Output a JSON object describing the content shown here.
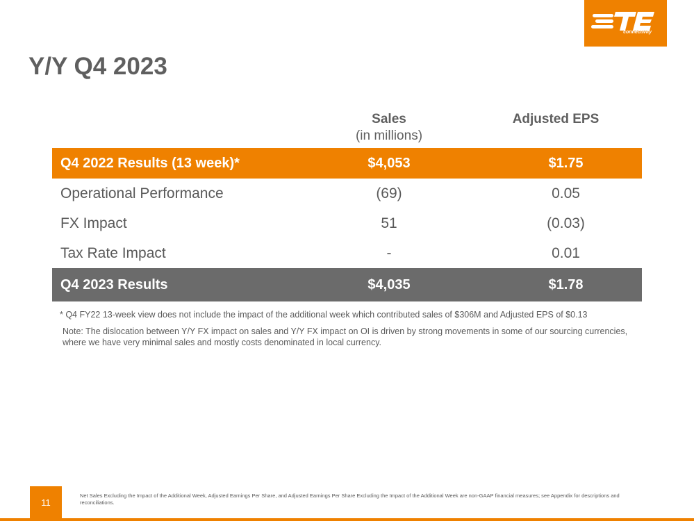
{
  "brand": {
    "logo_text": "TE",
    "logo_subtext": "connectivity",
    "accent_color": "#ef8100",
    "total_row_color": "#6b6b6b",
    "title_color": "#5f5f5f"
  },
  "title": "Y/Y Q4 2023",
  "columns": {
    "sales_label": "Sales",
    "sales_sublabel": "(in millions)",
    "eps_label": "Adjusted EPS"
  },
  "table": {
    "header_row": {
      "label": "Q4 2022 Results (13 week)*",
      "sales": "$4,053",
      "eps": "$1.75"
    },
    "rows": [
      {
        "label": "Operational Performance",
        "sales": "(69)",
        "eps": "0.05"
      },
      {
        "label": "FX Impact",
        "sales": "51",
        "eps": "(0.03)"
      },
      {
        "label": "Tax Rate Impact",
        "sales": "-",
        "eps": "0.01"
      }
    ],
    "total_row": {
      "label": "Q4 2023 Results",
      "sales": "$4,035",
      "eps": "$1.78"
    }
  },
  "footnote": "* Q4 FY22 13-week view does not include the impact of the additional week which contributed sales of $306M and Adjusted EPS of $0.13",
  "note": "Note: The dislocation between Y/Y FX impact on sales and Y/Y FX impact on OI is driven by strong movements in some of our sourcing currencies, where we have very minimal sales and mostly costs denominated in local currency.",
  "page_number": "11",
  "disclaimer": "Net Sales Excluding the Impact of the Additional Week, Adjusted Earnings Per Share, and Adjusted Earnings Per Share Excluding the Impact of the Additional Week are non-GAAP financial measures; see Appendix for descriptions and reconciliations."
}
